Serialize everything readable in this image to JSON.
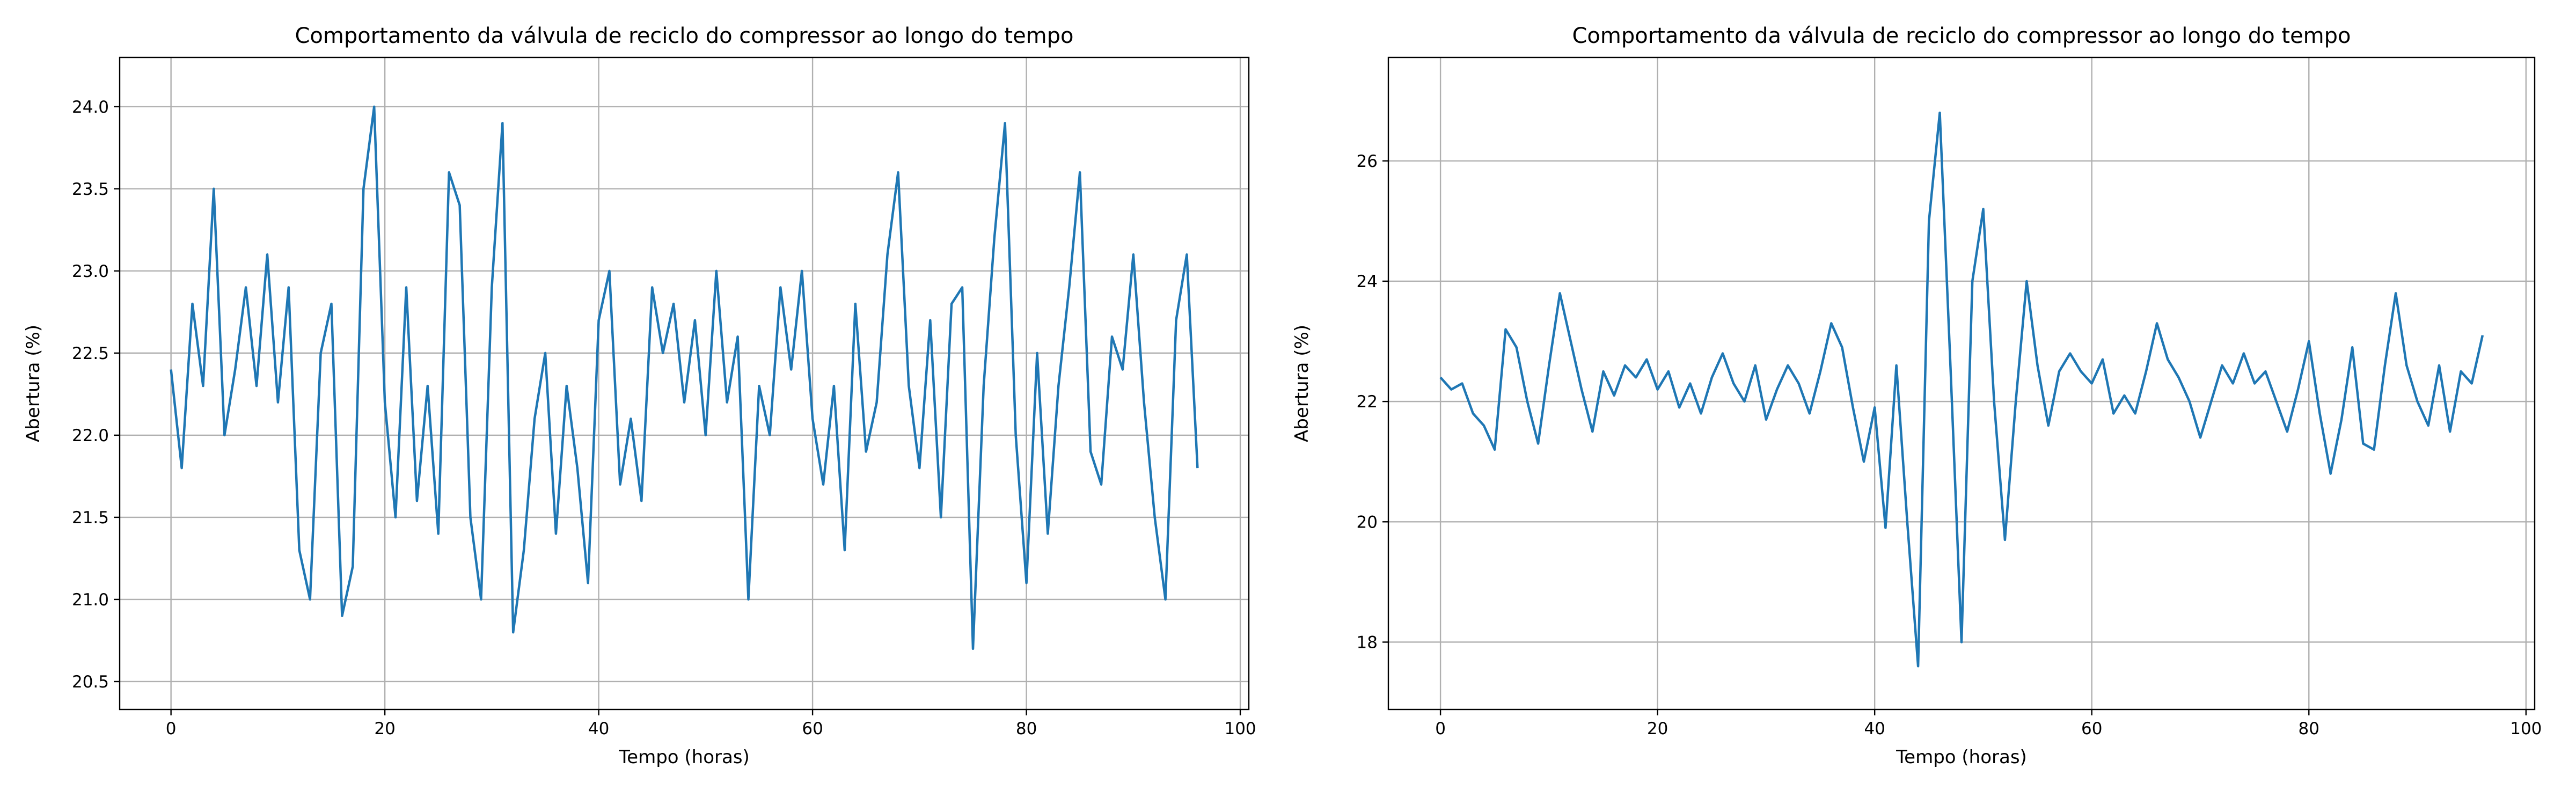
{
  "chart_data": [
    {
      "type": "line",
      "title": "Comportamento da válvula de reciclo do compressor ao longo do tempo",
      "xlabel": "Tempo (horas)",
      "ylabel": "Abertura (%)",
      "color": "#1f77b4",
      "grid": true,
      "xlim": [
        -4.8,
        100.8
      ],
      "ylim": [
        20.33,
        24.3
      ],
      "xticks": [
        0,
        20,
        40,
        60,
        80,
        100
      ],
      "yticks": [
        20.5,
        {
          "value": 21,
          "label": "21.0"
        },
        21.5,
        {
          "value": 22,
          "label": "22.0"
        },
        22.5,
        {
          "value": 23,
          "label": "23.0"
        },
        23.5,
        {
          "value": 24,
          "label": "24.0"
        }
      ],
      "x": [
        0,
        1,
        2,
        3,
        4,
        5,
        6,
        7,
        8,
        9,
        10,
        11,
        12,
        13,
        14,
        15,
        16,
        17,
        18,
        19,
        20,
        21,
        22,
        23,
        24,
        25,
        26,
        27,
        28,
        29,
        30,
        31,
        32,
        33,
        34,
        35,
        36,
        37,
        38,
        39,
        40,
        41,
        42,
        43,
        44,
        45,
        46,
        47,
        48,
        49,
        50,
        51,
        52,
        53,
        54,
        55,
        56,
        57,
        58,
        59,
        60,
        61,
        62,
        63,
        64,
        65,
        66,
        67,
        68,
        69,
        70,
        71,
        72,
        73,
        74,
        75,
        76,
        77,
        78,
        79,
        80,
        81,
        82,
        83,
        84,
        85,
        86,
        87,
        88,
        89,
        90,
        91,
        92,
        93,
        94,
        95,
        96
      ],
      "values": [
        22.4,
        21.8,
        22.8,
        22.3,
        23.5,
        22.0,
        22.4,
        22.9,
        22.3,
        23.1,
        22.2,
        22.9,
        21.3,
        21.0,
        22.5,
        22.8,
        20.9,
        21.2,
        23.5,
        24.0,
        22.2,
        21.5,
        22.9,
        21.6,
        22.3,
        21.4,
        23.6,
        23.4,
        21.5,
        21.0,
        22.9,
        23.9,
        20.8,
        21.3,
        22.1,
        22.5,
        21.4,
        22.3,
        21.8,
        21.1,
        22.7,
        23.0,
        21.7,
        22.1,
        21.6,
        22.9,
        22.5,
        22.8,
        22.2,
        22.7,
        22.0,
        23.0,
        22.2,
        22.6,
        21.0,
        22.3,
        22.0,
        22.9,
        22.4,
        23.0,
        22.1,
        21.7,
        22.3,
        21.3,
        22.8,
        21.9,
        22.2,
        23.1,
        23.6,
        22.3,
        21.8,
        22.7,
        21.5,
        22.8,
        22.9,
        20.7,
        22.3,
        23.2,
        23.9,
        22.0,
        21.1,
        22.5,
        21.4,
        22.3,
        22.9,
        23.6,
        21.9,
        21.7,
        22.6,
        22.4,
        23.1,
        22.2,
        21.5,
        21.0,
        22.7,
        23.1,
        21.8
      ]
    },
    {
      "type": "line",
      "title": "Comportamento da válvula de reciclo do compressor ao longo do tempo",
      "xlabel": "Tempo (horas)",
      "ylabel": "Abertura (%)",
      "color": "#1f77b4",
      "grid": true,
      "xlim": [
        -4.8,
        100.8
      ],
      "ylim": [
        16.88,
        27.72
      ],
      "xticks": [
        0,
        20,
        40,
        60,
        80,
        100
      ],
      "yticks": [
        18,
        20,
        22,
        24,
        26
      ],
      "x": [
        0,
        1,
        2,
        3,
        4,
        5,
        6,
        7,
        8,
        9,
        10,
        11,
        12,
        13,
        14,
        15,
        16,
        17,
        18,
        19,
        20,
        21,
        22,
        23,
        24,
        25,
        26,
        27,
        28,
        29,
        30,
        31,
        32,
        33,
        34,
        35,
        36,
        37,
        38,
        39,
        40,
        41,
        42,
        43,
        44,
        45,
        46,
        47,
        48,
        49,
        50,
        51,
        52,
        53,
        54,
        55,
        56,
        57,
        58,
        59,
        60,
        61,
        62,
        63,
        64,
        65,
        66,
        67,
        68,
        69,
        70,
        71,
        72,
        73,
        74,
        75,
        76,
        77,
        78,
        79,
        80,
        81,
        82,
        83,
        84,
        85,
        86,
        87,
        88,
        89,
        90,
        91,
        92,
        93,
        94,
        95,
        96
      ],
      "values": [
        22.4,
        22.2,
        22.3,
        21.8,
        21.6,
        21.2,
        23.2,
        22.9,
        22.0,
        21.3,
        22.6,
        23.8,
        23.0,
        22.2,
        21.5,
        22.5,
        22.1,
        22.6,
        22.4,
        22.7,
        22.2,
        22.5,
        21.9,
        22.3,
        21.8,
        22.4,
        22.8,
        22.3,
        22.0,
        22.6,
        21.7,
        22.2,
        22.6,
        22.3,
        21.8,
        22.5,
        23.3,
        22.9,
        21.9,
        21.0,
        21.9,
        19.9,
        22.6,
        20.0,
        17.6,
        25.0,
        26.8,
        22.5,
        18.0,
        24.0,
        25.2,
        22.0,
        19.7,
        22.0,
        24.0,
        22.6,
        21.6,
        22.5,
        22.8,
        22.5,
        22.3,
        22.7,
        21.8,
        22.1,
        21.8,
        22.5,
        23.3,
        22.7,
        22.4,
        22.0,
        21.4,
        22.0,
        22.6,
        22.3,
        22.8,
        22.3,
        22.5,
        22.0,
        21.5,
        22.2,
        23.0,
        21.8,
        20.8,
        21.7,
        22.9,
        21.3,
        21.2,
        22.6,
        23.8,
        22.6,
        22.0,
        21.6,
        22.6,
        21.5,
        22.5,
        22.3,
        23.1
      ]
    }
  ]
}
